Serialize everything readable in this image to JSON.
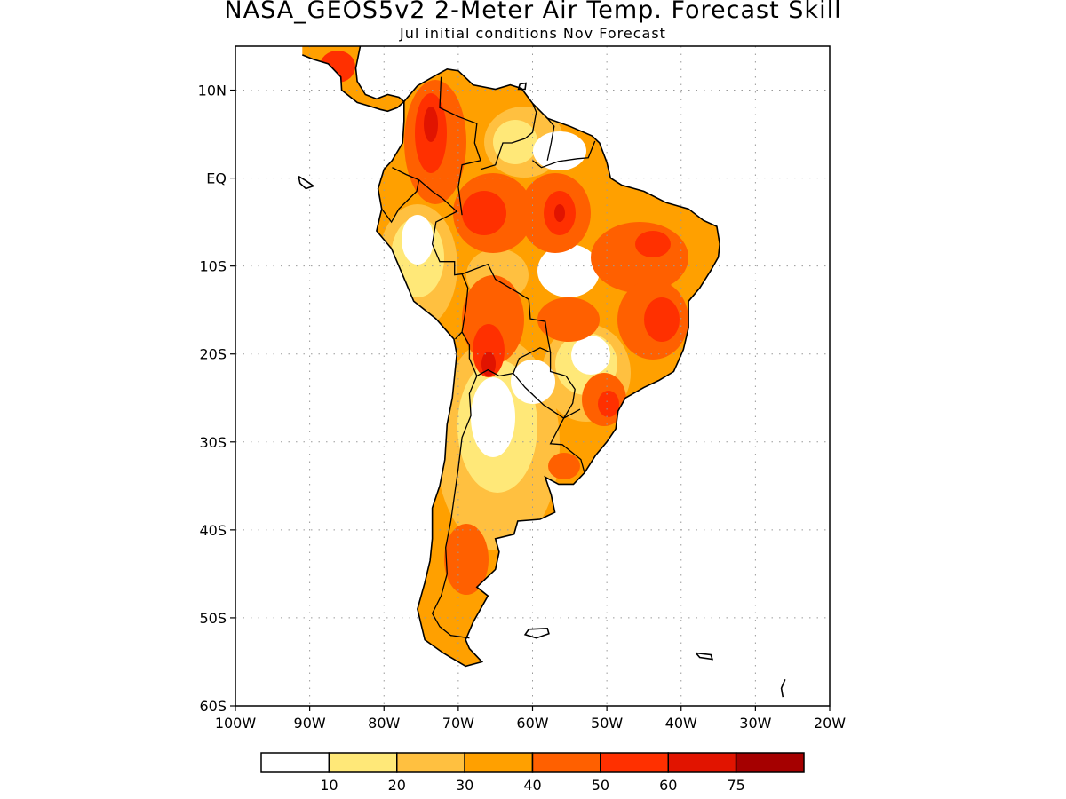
{
  "title": "NASA_GEOS5v2 2-Meter Air Temp. Forecast Skill",
  "subtitle": "Jul initial conditions  Nov Forecast",
  "map": {
    "region": "South America",
    "lon_range": [
      -100,
      -20
    ],
    "lat_range": [
      -60,
      15
    ],
    "grid": "dotted",
    "lat_ticks": [
      {
        "value": 10,
        "label": "10N"
      },
      {
        "value": 0,
        "label": "EQ"
      },
      {
        "value": -10,
        "label": "10S"
      },
      {
        "value": -20,
        "label": "20S"
      },
      {
        "value": -30,
        "label": "30S"
      },
      {
        "value": -40,
        "label": "40S"
      },
      {
        "value": -50,
        "label": "50S"
      },
      {
        "value": -60,
        "label": "60S"
      }
    ],
    "lon_ticks": [
      {
        "value": -100,
        "label": "100W"
      },
      {
        "value": -90,
        "label": "90W"
      },
      {
        "value": -80,
        "label": "80W"
      },
      {
        "value": -70,
        "label": "70W"
      },
      {
        "value": -60,
        "label": "60W"
      },
      {
        "value": -50,
        "label": "50W"
      },
      {
        "value": -40,
        "label": "40W"
      },
      {
        "value": -30,
        "label": "30W"
      },
      {
        "value": -20,
        "label": "20W"
      }
    ]
  },
  "colorbar": {
    "colors": [
      "#ffffff",
      "#ffe878",
      "#ffc040",
      "#ffa000",
      "#ff6000",
      "#ff3000",
      "#e11400",
      "#a50000"
    ],
    "labels": [
      "10",
      "20",
      "30",
      "40",
      "50",
      "60",
      "75"
    ]
  }
}
